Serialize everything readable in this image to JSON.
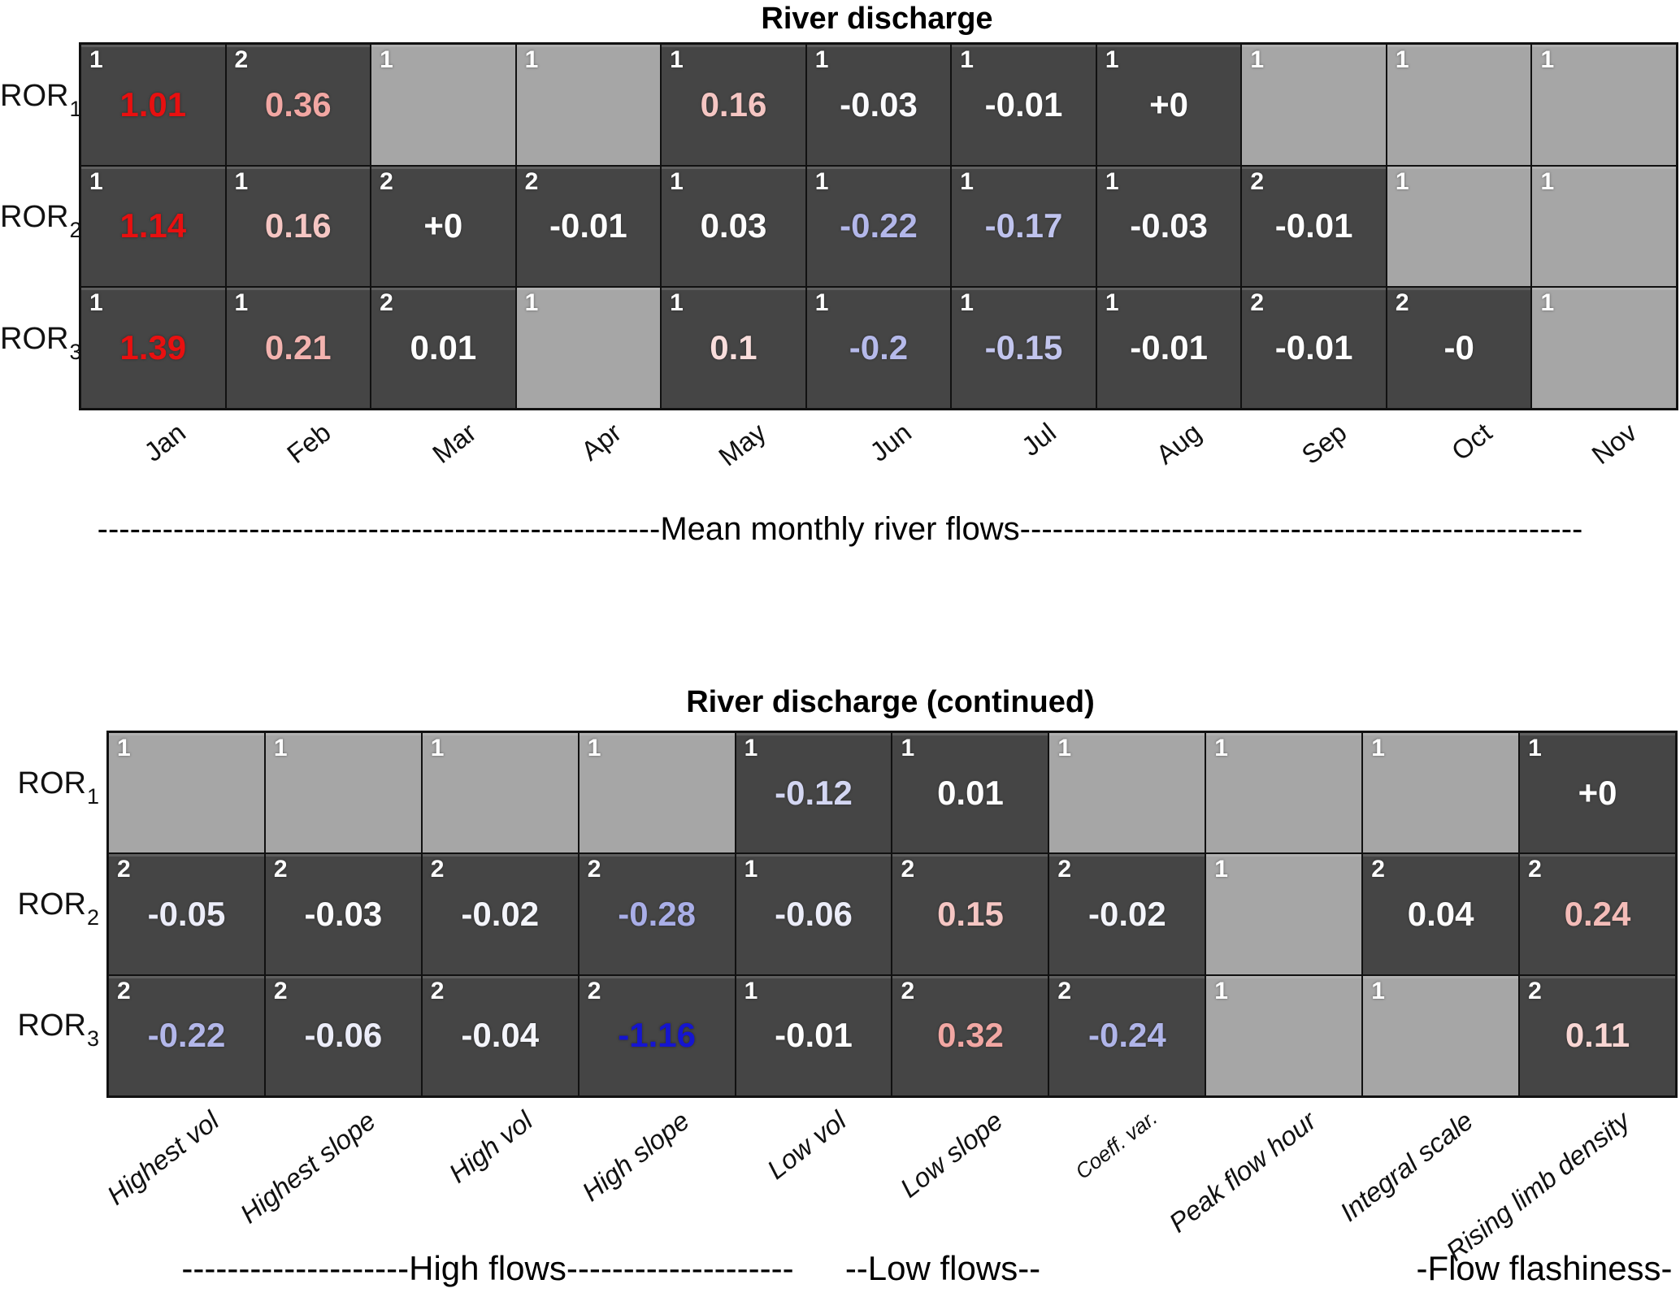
{
  "figure_title": "River discharge heatmap figure",
  "colors": {
    "cell_dark": "#454545",
    "cell_light": "#a6a6a6",
    "badge_text": "#ffffff",
    "strong_positive": "#e81010",
    "positive_pink": "#f2a7a3",
    "negative_periwinkle": "#b3b7ea",
    "strong_negative": "#1515d0",
    "neutral": "#ffffff"
  },
  "chart_data": [
    {
      "type": "heatmap",
      "title": "River discharge",
      "row_labels": [
        {
          "base": "ROR",
          "sub": "1"
        },
        {
          "base": "ROR",
          "sub": "2"
        },
        {
          "base": "ROR",
          "sub": "3"
        }
      ],
      "columns": [
        "Jan",
        "Feb",
        "Mar",
        "Apr",
        "May",
        "Jun",
        "Jul",
        "Aug",
        "Sep",
        "Oct",
        "Nov"
      ],
      "cells": {
        "ranks": [
          [
            1,
            2,
            1,
            1,
            1,
            1,
            1,
            1,
            1,
            1,
            1
          ],
          [
            1,
            1,
            2,
            2,
            1,
            1,
            1,
            1,
            2,
            1,
            1
          ],
          [
            1,
            1,
            2,
            1,
            1,
            1,
            1,
            1,
            2,
            2,
            1
          ]
        ],
        "values": [
          [
            "1.01",
            "0.36",
            null,
            null,
            "0.16",
            "-0.03",
            "-0.01",
            "+0",
            null,
            null,
            null
          ],
          [
            "1.14",
            "0.16",
            "+0",
            "-0.01",
            "0.03",
            "-0.22",
            "-0.17",
            "-0.03",
            "-0.01",
            null,
            null
          ],
          [
            "1.39",
            "0.21",
            "0.01",
            null,
            "0.1",
            "-0.2",
            "-0.15",
            "-0.01",
            "-0.01",
            "-0",
            null
          ]
        ],
        "value_colors": [
          [
            "#e81010",
            "#f2a7a3",
            null,
            null,
            "#f5c6c3",
            "#fbfbfe",
            "#ffffff",
            "#ffffff",
            null,
            null,
            null
          ],
          [
            "#e81010",
            "#f5c6c3",
            "#ffffff",
            "#ffffff",
            "#fefdfd",
            "#b3b7ea",
            "#bfc3ee",
            "#fbfbfe",
            "#ffffff",
            null,
            null
          ],
          [
            "#e81010",
            "#f3b3af",
            "#ffffff",
            null,
            "#f9dedc",
            "#b6baeb",
            "#c2c5ee",
            "#ffffff",
            "#ffffff",
            "#ffffff",
            null
          ]
        ]
      },
      "axis_annotation": "----------------------------------------------------Mean monthly river flows----------------------------------------------------"
    },
    {
      "type": "heatmap",
      "title": "River discharge (continued)",
      "row_labels": [
        {
          "base": "ROR",
          "sub": "1"
        },
        {
          "base": "ROR",
          "sub": "2"
        },
        {
          "base": "ROR",
          "sub": "3"
        }
      ],
      "columns": [
        "Highest vol",
        "Highest slope",
        "High vol",
        "High slope",
        "Low vol",
        "Low slope",
        "Coeff. var.",
        "Peak flow hour",
        "Integral scale",
        "Rising limb density"
      ],
      "cells": {
        "ranks": [
          [
            1,
            1,
            1,
            1,
            1,
            1,
            1,
            1,
            1,
            1
          ],
          [
            2,
            2,
            2,
            2,
            1,
            2,
            2,
            1,
            2,
            2
          ],
          [
            2,
            2,
            2,
            2,
            1,
            2,
            2,
            1,
            1,
            2
          ]
        ],
        "values": [
          [
            null,
            null,
            null,
            null,
            "-0.12",
            "0.01",
            null,
            null,
            null,
            "+0"
          ],
          [
            "-0.05",
            "-0.03",
            "-0.02",
            "-0.28",
            "-0.06",
            "0.15",
            "-0.02",
            null,
            "0.04",
            "0.24"
          ],
          [
            "-0.22",
            "-0.06",
            "-0.04",
            "-1.16",
            "-0.01",
            "0.32",
            "-0.24",
            null,
            null,
            "0.11"
          ]
        ],
        "value_colors": [
          [
            null,
            null,
            null,
            null,
            "#d3d6f2",
            "#ffffff",
            null,
            null,
            null,
            "#ffffff"
          ],
          [
            "#ecedf9",
            "#fbfbfe",
            "#f4f5fb",
            "#a9aee7",
            "#ecedf9",
            "#f5c6c3",
            "#f4f5fb",
            null,
            "#fdfcfc",
            "#f4bcb8"
          ],
          [
            "#b3b7ea",
            "#ecedf9",
            "#f4f5fb",
            "#1515d0",
            "#ffffff",
            "#f2a7a3",
            "#b0b5e9",
            null,
            null,
            "#f9d6d3"
          ]
        ]
      },
      "group_annotations": [
        "--------------------High flows--------------------",
        "--Low flows--",
        "-Flow flashiness-"
      ]
    }
  ]
}
